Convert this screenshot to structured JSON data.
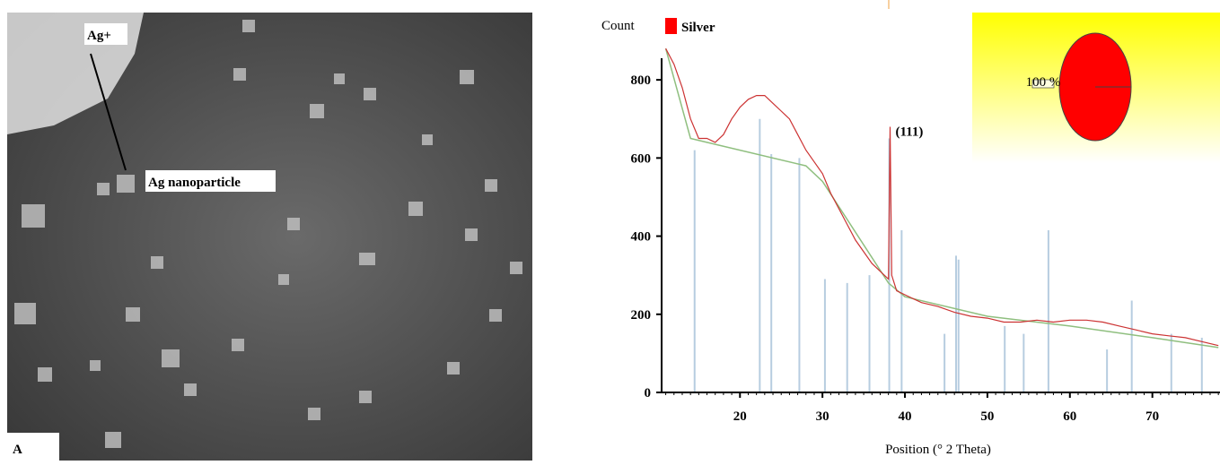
{
  "image_panel": {
    "labels": [
      "Ag+",
      "Ag nanoparticle",
      "A"
    ]
  },
  "chart_data": {
    "type": "line",
    "y_label": "Count",
    "x_label": "Position (° 2 Theta)",
    "annotations": [
      {
        "text": "(111)",
        "x": 38.2,
        "y": 680
      }
    ],
    "xlim": [
      10.5,
      78.2
    ],
    "ylim": [
      0,
      970
    ],
    "xticks": [
      20,
      30,
      40,
      50,
      60,
      70
    ],
    "yticks": [
      0,
      200,
      400,
      600,
      800
    ],
    "legend": "top-left",
    "series": [
      {
        "name": "Silver",
        "color": "#ff0000",
        "line_color": "#cc3333",
        "x": [
          11,
          12,
          13,
          14,
          15,
          16,
          17,
          18,
          19,
          20,
          21,
          22,
          23,
          24,
          25,
          26,
          27,
          28,
          29,
          30,
          31,
          32,
          33,
          34,
          35,
          36,
          37,
          38,
          38.2,
          38.4,
          39,
          40,
          42,
          44,
          46,
          48,
          50,
          52,
          54,
          56,
          58,
          60,
          62,
          64,
          66,
          68,
          70,
          72,
          74,
          76,
          78
        ],
        "values": [
          880,
          840,
          780,
          700,
          650,
          650,
          640,
          660,
          700,
          730,
          750,
          760,
          760,
          740,
          720,
          700,
          660,
          620,
          590,
          560,
          510,
          470,
          430,
          390,
          360,
          330,
          310,
          290,
          680,
          300,
          260,
          250,
          230,
          220,
          205,
          195,
          190,
          180,
          180,
          185,
          180,
          185,
          185,
          180,
          170,
          160,
          150,
          145,
          140,
          130,
          120
        ]
      },
      {
        "color": "#8fbf7f",
        "x": [
          11,
          14,
          16,
          28,
          30,
          38,
          40,
          50,
          60,
          70,
          78
        ],
        "values": [
          880,
          650,
          640,
          580,
          540,
          280,
          245,
          195,
          170,
          140,
          115
        ]
      }
    ],
    "reference_peaks": {
      "color": "#b7cde0",
      "x": [
        14.5,
        22.4,
        23.8,
        27.2,
        30.3,
        33,
        35.7,
        38.1,
        39.6,
        44.8,
        46.2,
        46.5,
        52.1,
        54.4,
        57.4,
        64.5,
        67.5,
        72.3,
        76
      ],
      "values": [
        620,
        700,
        610,
        600,
        290,
        280,
        300,
        650,
        415,
        150,
        350,
        340,
        170,
        150,
        415,
        110,
        235,
        150,
        140
      ]
    },
    "inset_pie": {
      "values": [
        100
      ],
      "value_labels": [
        "100 %"
      ],
      "color": "#ff0000"
    }
  }
}
